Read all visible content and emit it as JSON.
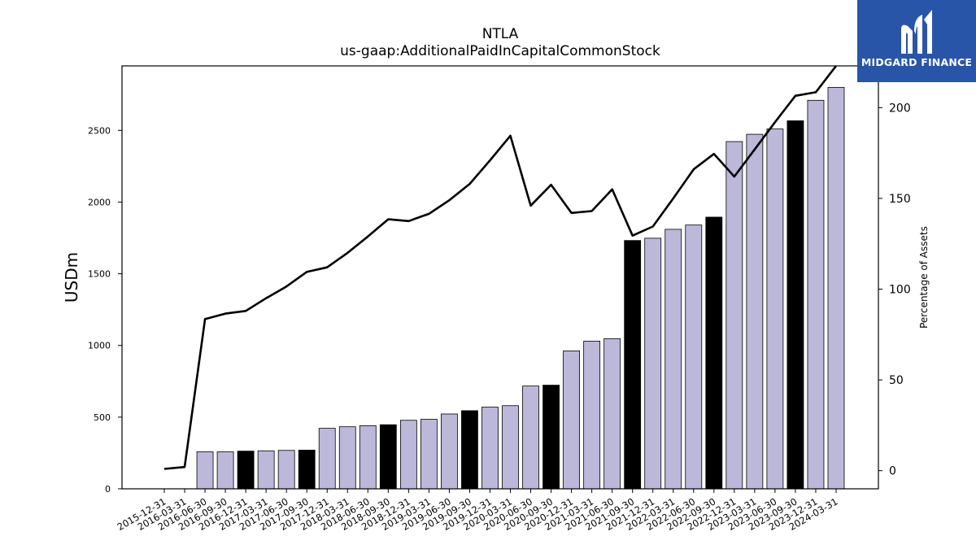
{
  "chart_data": {
    "type": "bar",
    "title": "NTLA",
    "subtitle": "us-gaap:AdditionalPaidInCapitalCommonStock",
    "ylabel": "USDm",
    "y2label": "Percentage of Assets",
    "ylim": [
      0,
      2950
    ],
    "y2lim": [
      -10,
      223
    ],
    "yticks": [
      0,
      500,
      1000,
      1500,
      2000,
      2500
    ],
    "y2ticks": [
      0,
      50,
      100,
      150,
      200
    ],
    "categories": [
      "2015-12-31",
      "2016-03-31",
      "2016-06-30",
      "2016-09-30",
      "2016-12-31",
      "2017-03-31",
      "2017-06-30",
      "2017-09-30",
      "2017-12-31",
      "2018-03-31",
      "2018-06-30",
      "2018-09-30",
      "2018-12-31",
      "2019-03-31",
      "2019-06-30",
      "2019-09-30",
      "2019-12-31",
      "2020-03-31",
      "2020-06-30",
      "2020-09-30",
      "2020-12-31",
      "2021-03-31",
      "2021-06-30",
      "2021-09-30",
      "2021-12-31",
      "2022-03-31",
      "2022-06-30",
      "2022-09-30",
      "2022-12-31",
      "2023-03-31",
      "2023-06-30",
      "2023-09-30",
      "2023-12-31",
      "2024-03-31"
    ],
    "series": [
      {
        "kind": "bar",
        "values": [
          0,
          0,
          258,
          258,
          263,
          265,
          268,
          270,
          422,
          433,
          440,
          447,
          478,
          485,
          522,
          545,
          570,
          580,
          717,
          723,
          962,
          1030,
          1047,
          1732,
          1748,
          1810,
          1840,
          1895,
          2422,
          2473,
          2510,
          2567,
          2710,
          2800
        ],
        "highlight": [
          false,
          false,
          false,
          false,
          true,
          false,
          false,
          true,
          false,
          false,
          false,
          true,
          false,
          false,
          false,
          true,
          false,
          false,
          false,
          true,
          false,
          false,
          false,
          true,
          false,
          false,
          false,
          true,
          false,
          false,
          false,
          true,
          false,
          false
        ]
      },
      {
        "kind": "line",
        "axis": "right",
        "values": [
          1,
          2,
          83.5,
          86.5,
          88,
          95,
          101.5,
          109.5,
          112,
          120,
          129,
          138.5,
          137.5,
          141.5,
          149,
          158,
          171,
          184.5,
          146,
          157.5,
          142,
          143,
          155,
          129.5,
          134.5,
          150,
          166,
          174.5,
          162,
          177,
          192,
          206.5,
          208.5,
          223
        ]
      }
    ],
    "colors": {
      "bar": "#bcb8da",
      "bar_highlight": "#000000",
      "line": "#000000",
      "edge": "#000000"
    }
  },
  "logo": {
    "text": "MIDGARD FINANCE",
    "bg": "#2855a8"
  }
}
